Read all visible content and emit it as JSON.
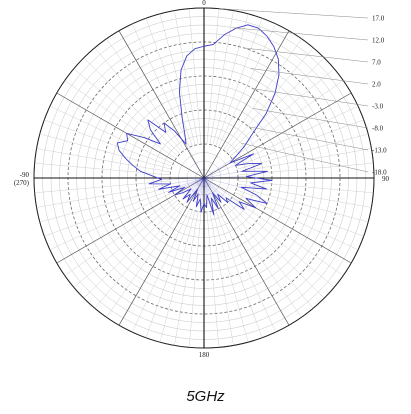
{
  "chart_data": {
    "type": "line",
    "title": "",
    "caption": "5GHz",
    "angular_ticks": [
      {
        "deg": 0,
        "label": "0"
      },
      {
        "deg": 90,
        "label": "90"
      },
      {
        "deg": 180,
        "label": "180"
      },
      {
        "deg": 270,
        "label": "-90",
        "label2": "(270)"
      }
    ],
    "radial_ticks": [
      "17.0",
      "12.0",
      "7.0",
      "2.0",
      "-3.0",
      "-8.0",
      "-13.0",
      "-18.0"
    ],
    "rlim": [
      -23,
      17
    ],
    "grid": true,
    "series": [
      {
        "color": "#3d3dc8",
        "points": [
          [
            0,
            8
          ],
          [
            4,
            8.5
          ],
          [
            8,
            11
          ],
          [
            12,
            13
          ],
          [
            16,
            14.5
          ],
          [
            20,
            14.5
          ],
          [
            24,
            13.5
          ],
          [
            28,
            12
          ],
          [
            32,
            10
          ],
          [
            36,
            7
          ],
          [
            40,
            3
          ],
          [
            44,
            -2
          ],
          [
            48,
            -8
          ],
          [
            52,
            -11
          ],
          [
            56,
            -14
          ],
          [
            60,
            -16
          ],
          [
            64,
            -10
          ],
          [
            68,
            -15
          ],
          [
            72,
            -12
          ],
          [
            76,
            -9
          ],
          [
            80,
            -14
          ],
          [
            84,
            -8
          ],
          [
            88,
            -13
          ],
          [
            92,
            -7
          ],
          [
            96,
            -12
          ],
          [
            100,
            -8
          ],
          [
            104,
            -14
          ],
          [
            108,
            -10
          ],
          [
            112,
            -7
          ],
          [
            116,
            -12
          ],
          [
            120,
            -9
          ],
          [
            124,
            -13
          ],
          [
            128,
            -11
          ],
          [
            132,
            -16
          ],
          [
            136,
            -15
          ],
          [
            140,
            -18
          ],
          [
            145,
            -16
          ],
          [
            150,
            -19
          ],
          [
            155,
            -15
          ],
          [
            160,
            -18
          ],
          [
            165,
            -14
          ],
          [
            170,
            -19
          ],
          [
            175,
            -16
          ],
          [
            180,
            -17
          ],
          [
            185,
            -15
          ],
          [
            190,
            -18
          ],
          [
            195,
            -16
          ],
          [
            200,
            -19
          ],
          [
            205,
            -17
          ],
          [
            210,
            -20
          ],
          [
            215,
            -16
          ],
          [
            220,
            -18
          ],
          [
            225,
            -16
          ],
          [
            230,
            -19
          ],
          [
            235,
            -17
          ],
          [
            240,
            -15
          ],
          [
            244,
            -18
          ],
          [
            248,
            -14
          ],
          [
            252,
            -17
          ],
          [
            256,
            -12
          ],
          [
            260,
            -15
          ],
          [
            264,
            -10
          ],
          [
            268,
            -13
          ],
          [
            272,
            -11
          ],
          [
            276,
            -8
          ],
          [
            280,
            -6
          ],
          [
            284,
            -4
          ],
          [
            288,
            -2
          ],
          [
            292,
            -1
          ],
          [
            296,
            -3
          ],
          [
            300,
            -2
          ],
          [
            304,
            -6
          ],
          [
            308,
            -10
          ],
          [
            312,
            -6
          ],
          [
            316,
            -4
          ],
          [
            320,
            -9
          ],
          [
            324,
            -7
          ],
          [
            328,
            -10
          ],
          [
            332,
            -14
          ],
          [
            336,
            -12
          ],
          [
            340,
            -8
          ],
          [
            344,
            -2
          ],
          [
            348,
            3
          ],
          [
            352,
            6
          ],
          [
            356,
            7.5
          ],
          [
            360,
            8
          ]
        ]
      }
    ]
  }
}
